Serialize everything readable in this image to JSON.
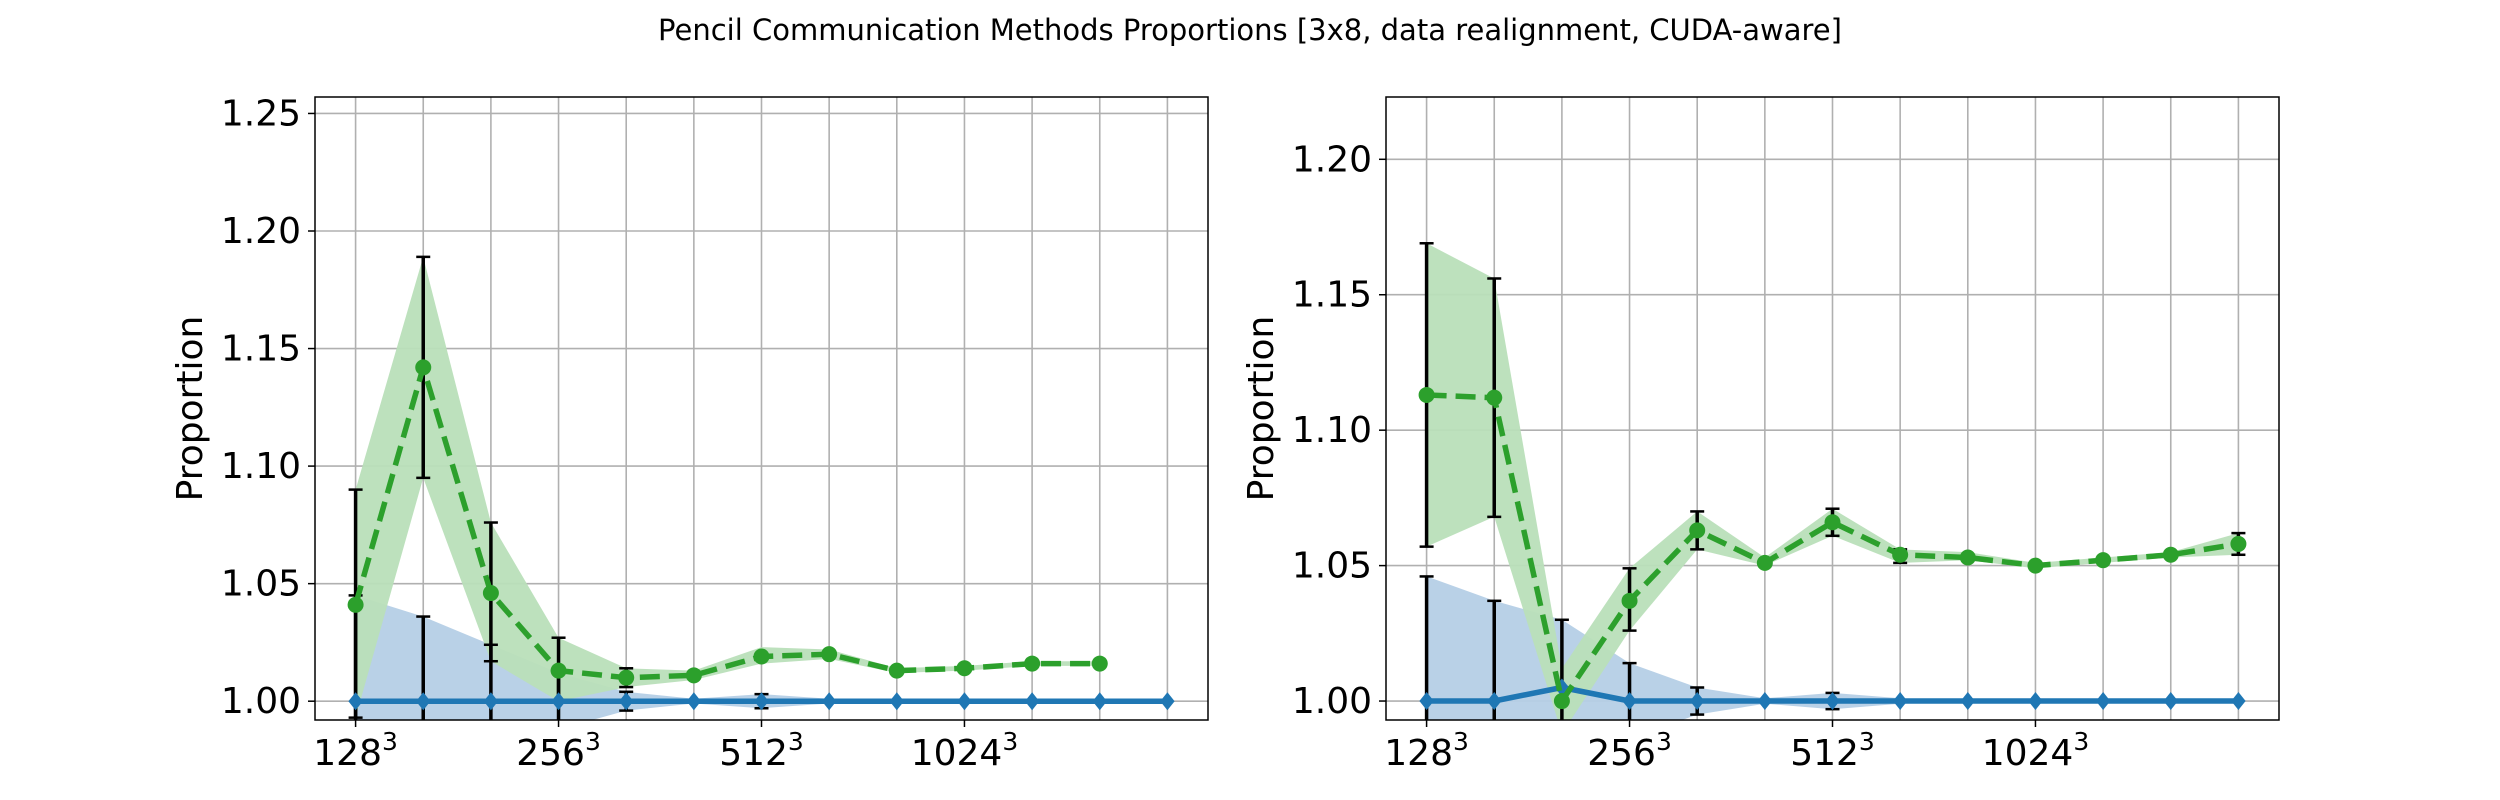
{
  "figure": {
    "title": "Pencil Communication Methods Proportions [3x8, data realignment, CUDA-aware]"
  },
  "colors": {
    "green_line": "#2ca02c",
    "green_band": "#b9dfb9",
    "blue_line": "#1f77b4",
    "blue_band": "#b5cfe6",
    "grid": "#b0b0b0",
    "errorbar": "#000000"
  },
  "chart_data": [
    {
      "type": "line",
      "ylabel": "Proportion",
      "ylim": [
        0.992,
        1.257
      ],
      "yticks": [
        1.0,
        1.05,
        1.1,
        1.15,
        1.2,
        1.25
      ],
      "xlim": [
        -0.6,
        12.6
      ],
      "xtick_labels": [
        {
          "x": 0,
          "base": "128",
          "exp": "3"
        },
        {
          "x": 3,
          "base": "256",
          "exp": "3"
        },
        {
          "x": 6,
          "base": "512",
          "exp": "3"
        },
        {
          "x": 9,
          "base": "1024",
          "exp": "3"
        }
      ],
      "grid": true,
      "series": [
        {
          "style": "dashed-circle",
          "color": "#2ca02c",
          "x": [
            0,
            1,
            2,
            3,
            4,
            5,
            6,
            7,
            8,
            9,
            10,
            11
          ],
          "y": [
            1.041,
            1.142,
            1.046,
            1.013,
            1.01,
            1.011,
            1.019,
            1.02,
            1.013,
            1.014,
            1.016,
            1.016
          ],
          "band_low": [
            0.993,
            1.095,
            1.017,
            1.0,
            1.006,
            1.009,
            1.016,
            1.018,
            1.012,
            1.013,
            1.015,
            1.015
          ],
          "band_high": [
            1.09,
            1.189,
            1.076,
            1.027,
            1.014,
            1.013,
            1.023,
            1.022,
            1.014,
            1.015,
            1.017,
            1.017
          ],
          "err_low": [
            0.993,
            1.095,
            1.017,
            1.0,
            1.006,
            null,
            null,
            null,
            null,
            null,
            null,
            null
          ],
          "err_high": [
            1.09,
            1.189,
            1.076,
            1.027,
            1.014,
            null,
            null,
            null,
            null,
            null,
            null,
            null
          ]
        },
        {
          "style": "solid-diamond",
          "color": "#1f77b4",
          "x": [
            0,
            1,
            2,
            3,
            4,
            5,
            6,
            7,
            8,
            9,
            10,
            11,
            12
          ],
          "y": [
            1.0,
            1.0,
            1.0,
            1.0,
            1.0,
            1.0,
            1.0,
            1.0,
            1.0,
            1.0,
            1.0,
            1.0,
            1.0
          ],
          "band_low": [
            0.955,
            0.965,
            0.976,
            0.988,
            0.996,
            0.999,
            0.997,
            0.999,
            1.0,
            1.0,
            1.0,
            1.0,
            1.0
          ],
          "band_high": [
            1.045,
            1.036,
            1.024,
            1.012,
            1.004,
            1.001,
            1.003,
            1.001,
            1.0,
            1.0,
            1.0,
            1.0,
            1.0
          ],
          "err_low": [
            0.955,
            0.965,
            0.976,
            0.988,
            0.996,
            null,
            0.997,
            null,
            null,
            null,
            null,
            null,
            null
          ],
          "err_high": [
            1.045,
            1.036,
            1.024,
            1.012,
            1.004,
            null,
            1.003,
            null,
            null,
            null,
            null,
            null,
            null
          ]
        }
      ]
    },
    {
      "type": "line",
      "ylabel": "Proportion",
      "ylim": [
        0.993,
        1.223
      ],
      "yticks": [
        1.0,
        1.05,
        1.1,
        1.15,
        1.2
      ],
      "xlim": [
        -0.6,
        12.6
      ],
      "xtick_labels": [
        {
          "x": 0,
          "base": "128",
          "exp": "3"
        },
        {
          "x": 3,
          "base": "256",
          "exp": "3"
        },
        {
          "x": 6,
          "base": "512",
          "exp": "3"
        },
        {
          "x": 9,
          "base": "1024",
          "exp": "3"
        }
      ],
      "grid": true,
      "series": [
        {
          "style": "dashed-circle",
          "color": "#2ca02c",
          "x": [
            0,
            1,
            2,
            3,
            4,
            5,
            6,
            7,
            8,
            9,
            10,
            11,
            12
          ],
          "y": [
            1.113,
            1.112,
            1.0,
            1.037,
            1.063,
            1.051,
            1.066,
            1.054,
            1.053,
            1.05,
            1.052,
            1.054,
            1.058
          ],
          "band_low": [
            1.057,
            1.068,
            0.988,
            1.026,
            1.056,
            1.05,
            1.061,
            1.051,
            1.052,
            1.049,
            1.051,
            1.053,
            1.054
          ],
          "band_high": [
            1.169,
            1.156,
            1.012,
            1.049,
            1.07,
            1.053,
            1.071,
            1.056,
            1.055,
            1.051,
            1.053,
            1.055,
            1.062
          ],
          "err_low": [
            1.057,
            1.068,
            null,
            1.026,
            1.056,
            null,
            1.061,
            1.051,
            null,
            null,
            null,
            null,
            1.054
          ],
          "err_high": [
            1.169,
            1.156,
            null,
            1.049,
            1.07,
            null,
            1.071,
            1.056,
            null,
            null,
            null,
            null,
            1.062
          ]
        },
        {
          "style": "solid-diamond",
          "color": "#1f77b4",
          "x": [
            0,
            1,
            2,
            3,
            4,
            5,
            6,
            7,
            8,
            9,
            10,
            11,
            12
          ],
          "y": [
            1.0,
            1.0,
            1.005,
            1.0,
            1.0,
            1.0,
            1.0,
            1.0,
            1.0,
            1.0,
            1.0,
            1.0,
            1.0
          ],
          "band_low": [
            0.954,
            0.963,
            0.98,
            0.986,
            0.995,
            0.999,
            0.997,
            0.999,
            1.0,
            1.0,
            1.0,
            1.0,
            1.0
          ],
          "band_high": [
            1.046,
            1.037,
            1.03,
            1.014,
            1.005,
            1.001,
            1.003,
            1.001,
            1.0,
            1.0,
            1.0,
            1.0,
            1.0
          ],
          "err_low": [
            0.954,
            0.963,
            0.98,
            0.986,
            0.995,
            null,
            0.997,
            null,
            null,
            null,
            null,
            null,
            null
          ],
          "err_high": [
            1.046,
            1.037,
            1.03,
            1.014,
            1.005,
            null,
            1.003,
            null,
            null,
            null,
            null,
            null,
            null
          ]
        }
      ]
    }
  ]
}
